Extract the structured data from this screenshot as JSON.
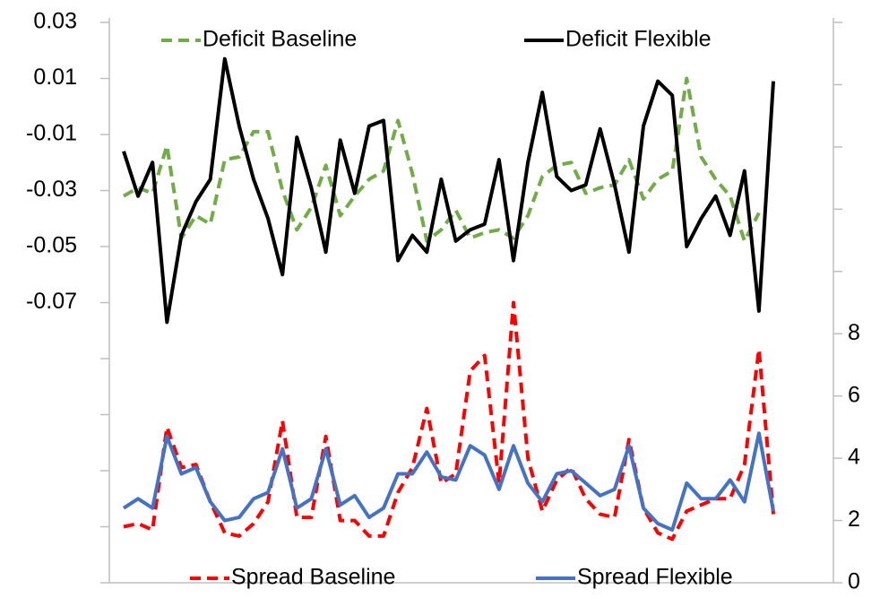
{
  "chart_data": {
    "type": "line",
    "series": [
      {
        "name": "Deficit Baseline",
        "color": "#70ad47",
        "dash": true,
        "axis": "y",
        "values": [
          -0.032,
          -0.029,
          -0.031,
          -0.014,
          -0.047,
          -0.039,
          -0.042,
          -0.019,
          -0.018,
          -0.009,
          -0.009,
          -0.03,
          -0.044,
          -0.036,
          -0.021,
          -0.039,
          -0.032,
          -0.026,
          -0.023,
          -0.005,
          -0.024,
          -0.048,
          -0.044,
          -0.037,
          -0.047,
          -0.045,
          -0.044,
          -0.047,
          -0.039,
          -0.025,
          -0.021,
          -0.02,
          -0.031,
          -0.029,
          -0.028,
          -0.019,
          -0.033,
          -0.026,
          -0.023,
          0.01,
          -0.018,
          -0.026,
          -0.032,
          -0.048,
          -0.038,
          null
        ]
      },
      {
        "name": "Deficit Flexible",
        "color": "#000000",
        "dash": false,
        "axis": "y",
        "values": [
          -0.016,
          -0.032,
          -0.02,
          -0.077,
          -0.046,
          -0.034,
          -0.026,
          0.017,
          -0.007,
          -0.026,
          -0.04,
          -0.06,
          -0.011,
          -0.029,
          -0.052,
          -0.012,
          -0.031,
          -0.007,
          -0.005,
          -0.055,
          -0.046,
          -0.052,
          -0.026,
          -0.048,
          -0.044,
          -0.042,
          -0.019,
          -0.055,
          -0.02,
          0.005,
          -0.025,
          -0.03,
          -0.028,
          -0.008,
          -0.028,
          -0.052,
          -0.007,
          0.009,
          0.004,
          -0.05,
          -0.04,
          -0.032,
          -0.046,
          -0.023,
          -0.073,
          0.009
        ]
      },
      {
        "name": "Spread Baseline",
        "color": "#ff0000",
        "dash": true,
        "axis": "y2",
        "values": [
          1.8,
          1.9,
          1.7,
          5.0,
          3.7,
          3.8,
          2.6,
          1.6,
          1.5,
          1.9,
          2.6,
          5.2,
          2.1,
          2.1,
          4.7,
          2.0,
          2.0,
          1.5,
          1.5,
          2.9,
          3.7,
          5.6,
          3.2,
          3.5,
          6.8,
          7.3,
          3.2,
          9.0,
          4.0,
          2.3,
          3.3,
          3.7,
          2.7,
          2.2,
          2.1,
          4.6,
          2.4,
          1.6,
          1.4,
          2.3,
          2.5,
          2.7,
          2.7,
          3.8,
          7.5,
          2.2
        ]
      },
      {
        "name": "Spread Flexible",
        "color": "#4472c4",
        "dash": false,
        "axis": "y2",
        "values": [
          2.4,
          2.7,
          2.4,
          4.7,
          3.5,
          3.7,
          2.6,
          2.0,
          2.1,
          2.7,
          2.9,
          4.3,
          2.4,
          2.7,
          4.3,
          2.5,
          2.8,
          2.1,
          2.4,
          3.5,
          3.5,
          4.2,
          3.4,
          3.3,
          4.4,
          4.1,
          3.0,
          4.4,
          3.2,
          2.6,
          3.5,
          3.6,
          3.2,
          2.8,
          3.0,
          4.4,
          2.4,
          1.9,
          1.7,
          3.2,
          2.7,
          2.7,
          3.3,
          2.6,
          4.8,
          2.3
        ]
      }
    ],
    "ylim": [
      -0.17,
      0.03
    ],
    "yticks": [
      0.03,
      0.01,
      -0.01,
      -0.03,
      -0.05,
      -0.07
    ],
    "y_minor_ticks": [
      -0.09,
      -0.11,
      -0.13,
      -0.15,
      -0.17
    ],
    "y2lim": [
      0,
      18
    ],
    "y2ticks": [
      0,
      2,
      4,
      6,
      8
    ],
    "y2_minor_ticks": [
      10,
      12,
      14,
      16,
      18
    ]
  }
}
